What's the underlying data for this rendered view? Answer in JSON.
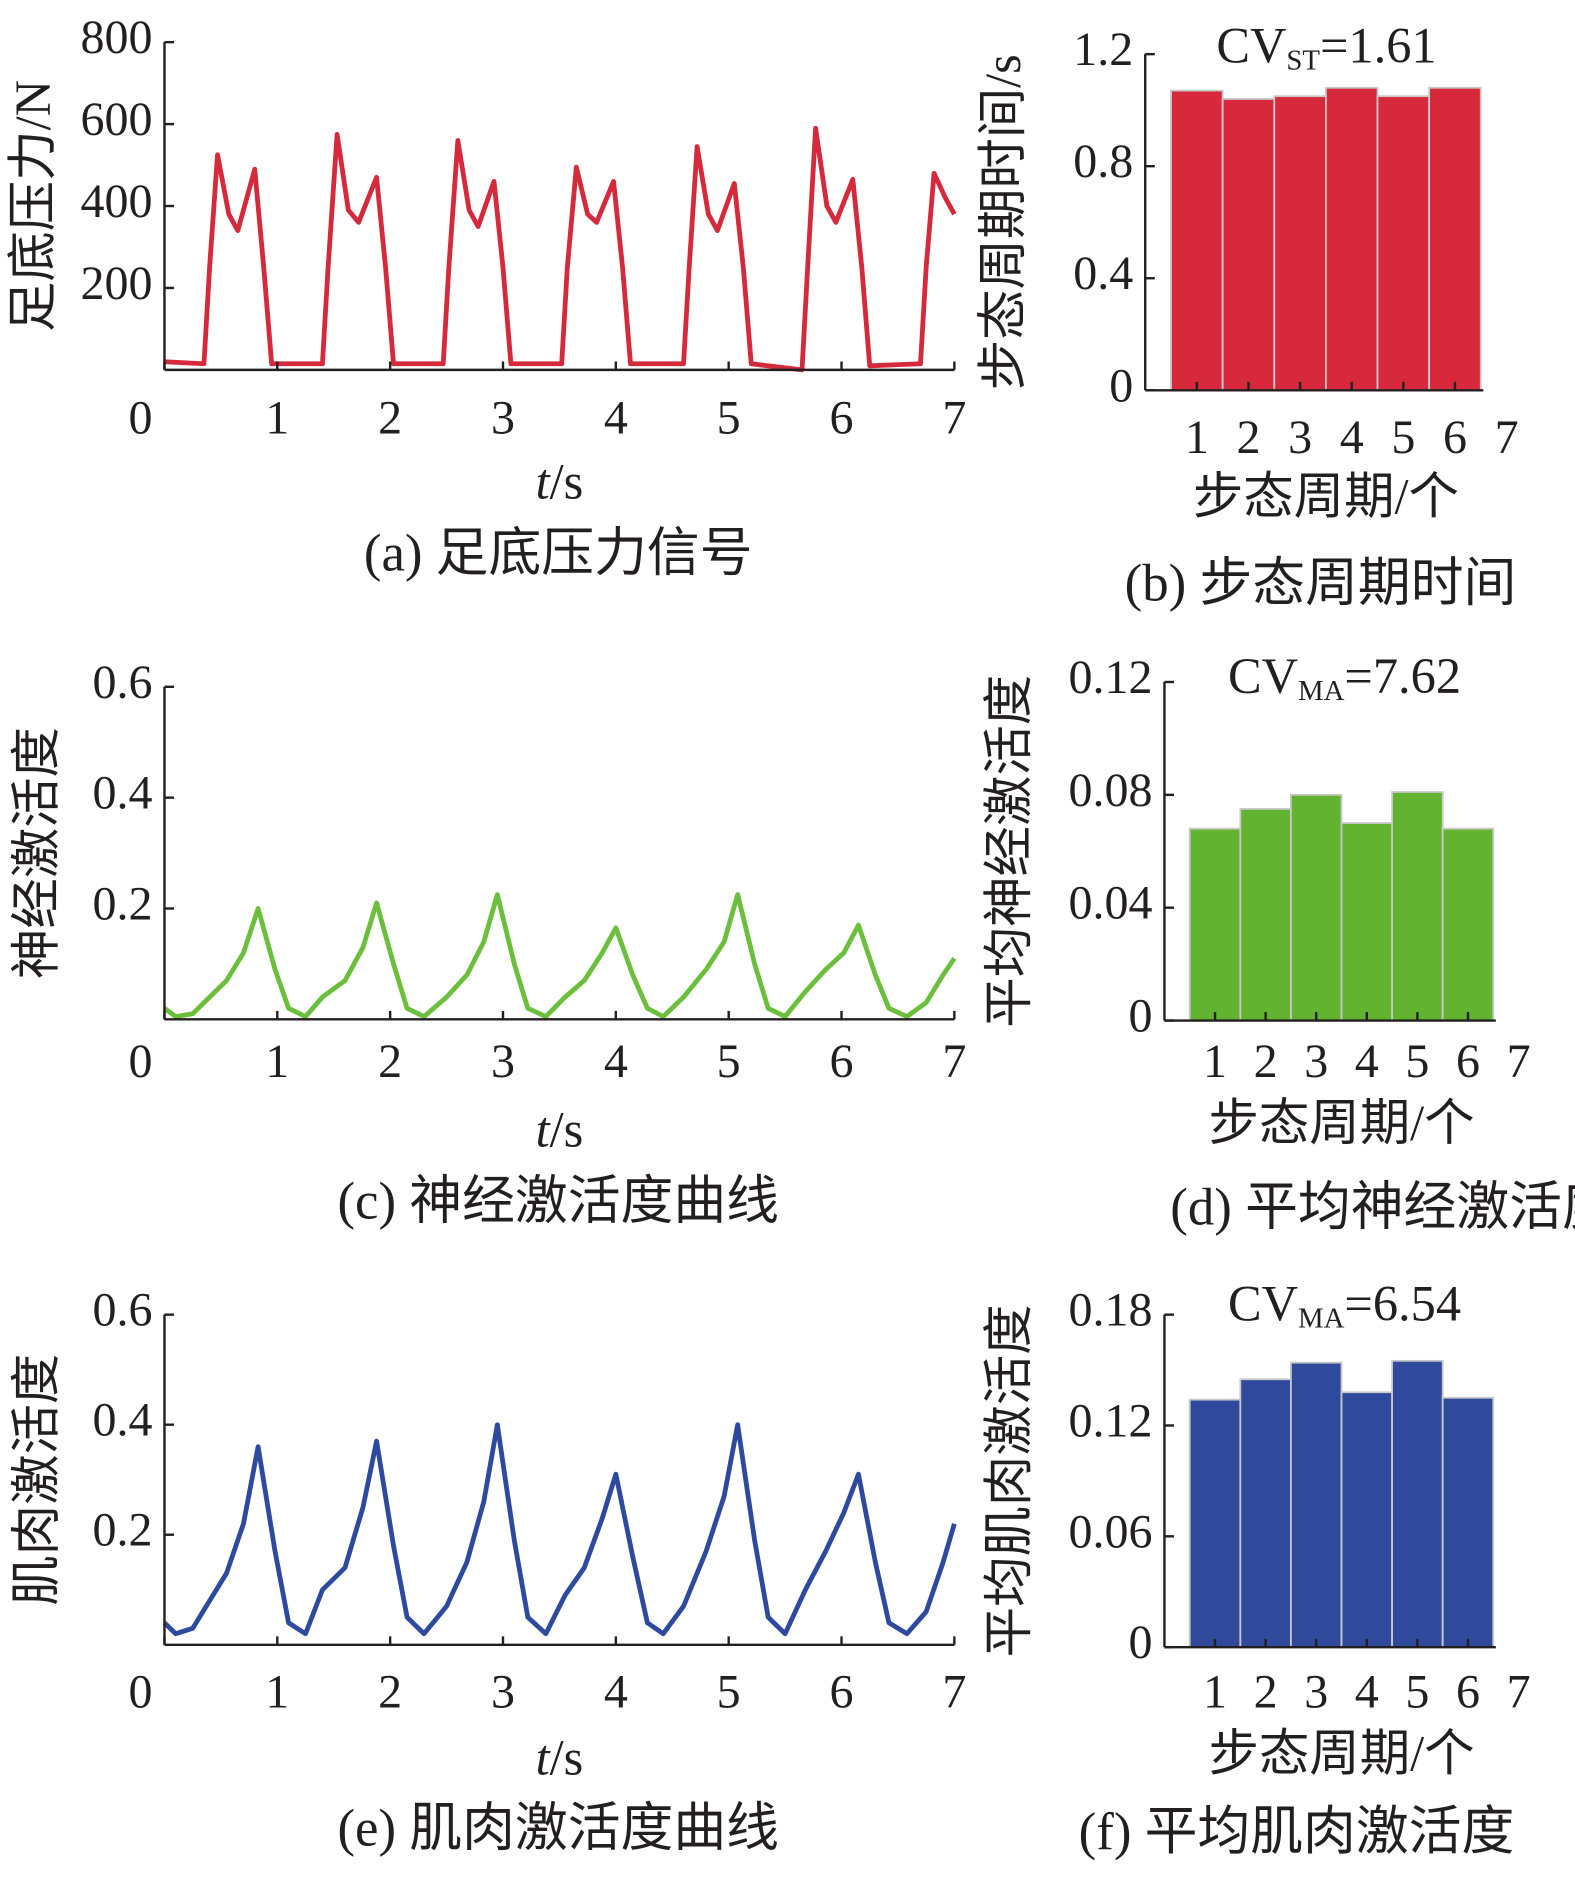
{
  "chart_data": [
    {
      "type": "line",
      "ylabel": "足底压力/N",
      "xlabel": [
        "t",
        "/s"
      ],
      "caption": "(a) 足底压力信号",
      "color": "#d42a3c",
      "xlim": [
        0,
        7
      ],
      "ylim": [
        0,
        800
      ],
      "xticks": [
        0,
        1,
        2,
        3,
        4,
        5,
        6,
        7
      ],
      "yticks": [
        200,
        400,
        600,
        800
      ],
      "x": [
        0,
        0.35,
        0.4,
        0.47,
        0.57,
        0.65,
        0.8,
        0.88,
        0.95,
        1.4,
        1.45,
        1.53,
        1.63,
        1.72,
        1.88,
        1.96,
        2.03,
        2.47,
        2.52,
        2.6,
        2.7,
        2.78,
        2.92,
        3.0,
        3.07,
        3.52,
        3.57,
        3.65,
        3.75,
        3.83,
        3.98,
        4.06,
        4.13,
        4.6,
        4.65,
        4.72,
        4.82,
        4.9,
        5.05,
        5.13,
        5.2,
        5.65,
        5.7,
        5.77,
        5.87,
        5.95,
        6.1,
        6.18,
        6.25,
        6.7,
        6.75,
        6.82,
        6.92,
        7.0
      ],
      "values": [
        20,
        15,
        250,
        525,
        380,
        340,
        490,
        250,
        15,
        15,
        250,
        575,
        390,
        360,
        470,
        250,
        15,
        15,
        250,
        560,
        390,
        350,
        460,
        250,
        15,
        15,
        250,
        495,
        380,
        360,
        460,
        250,
        15,
        15,
        250,
        545,
        380,
        340,
        455,
        250,
        15,
        0,
        250,
        590,
        400,
        360,
        465,
        250,
        10,
        15,
        250,
        480,
        420,
        380
      ]
    },
    {
      "type": "bar",
      "ylabel": "步态周期时间/s",
      "xlabel": "步态周期/个",
      "caption": "(b) 步态周期时间",
      "annotation": [
        "CV",
        "ST",
        "=1.61"
      ],
      "color": "#d7283c",
      "xlim": [
        0,
        7
      ],
      "ylim": [
        0,
        1.2
      ],
      "xticks": [
        1,
        2,
        3,
        4,
        5,
        6,
        7
      ],
      "yticks": [
        0,
        0.4,
        0.8,
        1.2
      ],
      "x": [
        1,
        2,
        3,
        4,
        5,
        6
      ],
      "values": [
        1.07,
        1.04,
        1.05,
        1.08,
        1.05,
        1.08
      ]
    },
    {
      "type": "line",
      "ylabel": "神经激活度",
      "xlabel": [
        "t",
        "/s"
      ],
      "caption": "(c) 神经激活度曲线",
      "color": "#6cbf3c",
      "xlim": [
        0,
        7
      ],
      "ylim": [
        0,
        0.6
      ],
      "xticks": [
        0,
        1,
        2,
        3,
        4,
        5,
        6,
        7
      ],
      "yticks": [
        0.2,
        0.4,
        0.6
      ],
      "x": [
        0,
        0.1,
        0.25,
        0.4,
        0.55,
        0.7,
        0.83,
        0.98,
        1.1,
        1.25,
        1.4,
        1.6,
        1.76,
        1.88,
        2.03,
        2.15,
        2.3,
        2.5,
        2.68,
        2.83,
        2.95,
        3.1,
        3.22,
        3.38,
        3.55,
        3.72,
        3.88,
        4.0,
        4.15,
        4.28,
        4.42,
        4.6,
        4.8,
        4.96,
        5.08,
        5.23,
        5.35,
        5.5,
        5.68,
        5.86,
        6.02,
        6.15,
        6.3,
        6.42,
        6.58,
        6.75,
        6.9,
        7.0
      ],
      "values": [
        0.02,
        0.005,
        0.01,
        0.04,
        0.07,
        0.12,
        0.2,
        0.09,
        0.02,
        0.005,
        0.04,
        0.07,
        0.13,
        0.21,
        0.1,
        0.02,
        0.005,
        0.04,
        0.08,
        0.14,
        0.225,
        0.1,
        0.02,
        0.005,
        0.04,
        0.07,
        0.12,
        0.165,
        0.08,
        0.02,
        0.005,
        0.04,
        0.09,
        0.14,
        0.225,
        0.1,
        0.02,
        0.005,
        0.05,
        0.09,
        0.12,
        0.17,
        0.08,
        0.02,
        0.005,
        0.03,
        0.08,
        0.11
      ]
    },
    {
      "type": "bar",
      "ylabel": "平均神经激活度",
      "xlabel": "步态周期/个",
      "caption": "(d) 平均神经激活度",
      "annotation": [
        "CV",
        "MA",
        "=7.62"
      ],
      "color": "#62b32f",
      "xlim": [
        0,
        7
      ],
      "ylim": [
        0,
        0.12
      ],
      "xticks": [
        1,
        2,
        3,
        4,
        5,
        6,
        7
      ],
      "yticks": [
        0,
        0.04,
        0.08,
        0.12
      ],
      "x": [
        1,
        2,
        3,
        4,
        5,
        6
      ],
      "values": [
        0.068,
        0.075,
        0.08,
        0.07,
        0.081,
        0.068
      ]
    },
    {
      "type": "line",
      "ylabel": "肌肉激活度",
      "xlabel": [
        "t",
        "/s"
      ],
      "caption": "(e) 肌肉激活度曲线",
      "color": "#2e4a9e",
      "xlim": [
        0,
        7
      ],
      "ylim": [
        0,
        0.6
      ],
      "xticks": [
        0,
        1,
        2,
        3,
        4,
        5,
        6,
        7
      ],
      "yticks": [
        0.2,
        0.4,
        0.6
      ],
      "x": [
        0,
        0.1,
        0.25,
        0.4,
        0.55,
        0.7,
        0.83,
        0.98,
        1.1,
        1.25,
        1.4,
        1.6,
        1.76,
        1.88,
        2.03,
        2.15,
        2.3,
        2.5,
        2.68,
        2.83,
        2.95,
        3.1,
        3.22,
        3.38,
        3.55,
        3.72,
        3.88,
        4.0,
        4.15,
        4.28,
        4.42,
        4.6,
        4.8,
        4.96,
        5.08,
        5.23,
        5.35,
        5.5,
        5.68,
        5.86,
        6.02,
        6.15,
        6.3,
        6.42,
        6.58,
        6.75,
        6.9,
        7.0
      ],
      "values": [
        0.04,
        0.02,
        0.03,
        0.08,
        0.13,
        0.22,
        0.36,
        0.17,
        0.04,
        0.02,
        0.1,
        0.14,
        0.25,
        0.37,
        0.18,
        0.05,
        0.02,
        0.07,
        0.15,
        0.26,
        0.4,
        0.19,
        0.05,
        0.02,
        0.09,
        0.14,
        0.23,
        0.31,
        0.16,
        0.04,
        0.02,
        0.07,
        0.17,
        0.27,
        0.4,
        0.19,
        0.05,
        0.02,
        0.1,
        0.17,
        0.24,
        0.31,
        0.15,
        0.04,
        0.02,
        0.06,
        0.15,
        0.22
      ]
    },
    {
      "type": "bar",
      "ylabel": "平均肌肉激活度",
      "xlabel": "步态周期/个",
      "caption": "(f) 平均肌肉激活度",
      "annotation": [
        "CV",
        "MA",
        "=6.54"
      ],
      "color": "#2f4a9c",
      "xlim": [
        0,
        7
      ],
      "ylim": [
        0,
        0.18
      ],
      "xticks": [
        1,
        2,
        3,
        4,
        5,
        6,
        7
      ],
      "yticks": [
        0,
        0.06,
        0.12,
        0.18
      ],
      "x": [
        1,
        2,
        3,
        4,
        5,
        6
      ],
      "values": [
        0.134,
        0.145,
        0.154,
        0.138,
        0.155,
        0.135
      ]
    }
  ]
}
